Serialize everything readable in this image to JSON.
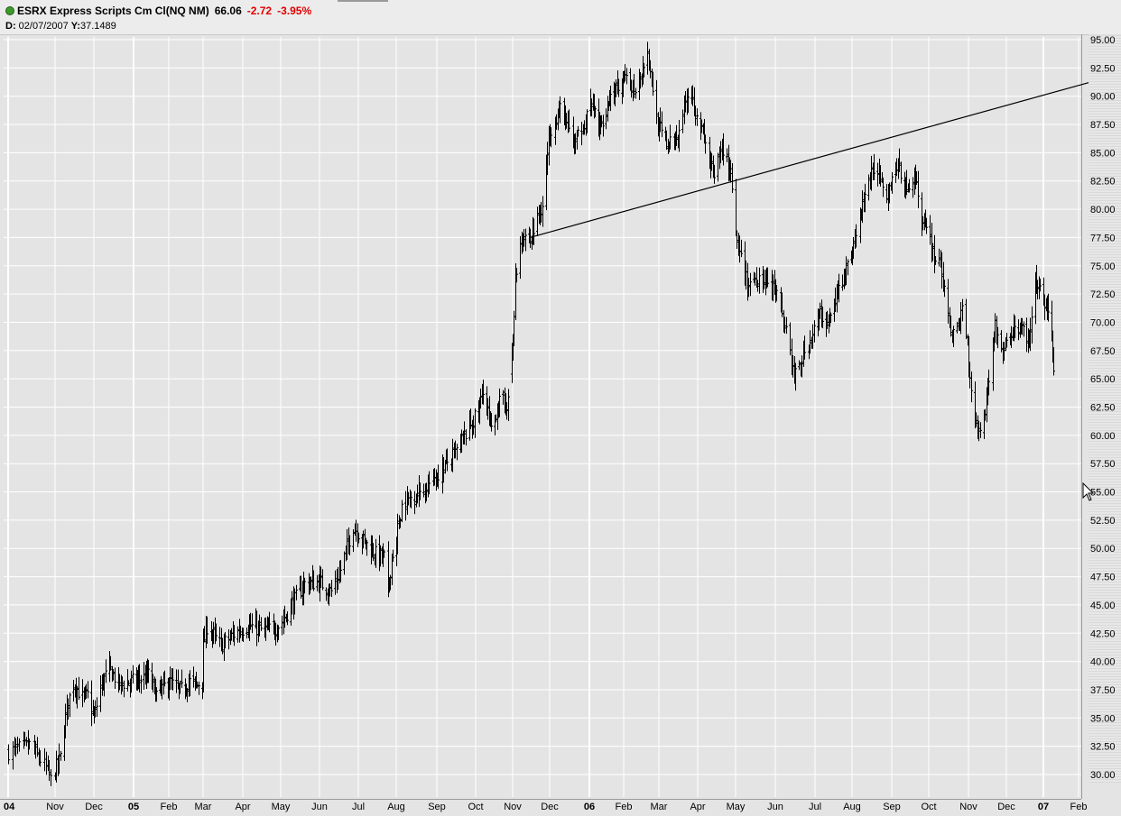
{
  "header": {
    "title": "ESRX Express Scripts Cm Cl(NQ NM)",
    "last": "66.06",
    "change": "-2.72",
    "change_pct": "-3.95%",
    "cursor_date_label": "D:",
    "cursor_date": "02/07/2007",
    "cursor_y_label": "Y:",
    "cursor_y": "37.1489"
  },
  "colors": {
    "background": "#e4e4e4",
    "grid": "#ffffff",
    "bars": "#000000",
    "change": "#e00000"
  },
  "chart_data": {
    "type": "ohlc",
    "title": "",
    "ylim": [
      29,
      95.5
    ],
    "y_ticks": [
      "30.00",
      "32.50",
      "35.00",
      "37.50",
      "40.00",
      "42.50",
      "45.00",
      "47.50",
      "50.00",
      "52.50",
      "55.00",
      "57.50",
      "60.00",
      "62.50",
      "65.00",
      "67.50",
      "70.00",
      "72.50",
      "75.00",
      "77.50",
      "80.00",
      "82.50",
      "85.00",
      "87.50",
      "90.00",
      "92.50",
      "95.00"
    ],
    "x_ticks": [
      "04",
      "Nov",
      "Dec",
      "05",
      "Feb",
      "Mar",
      "Apr",
      "May",
      "Jun",
      "Jul",
      "Aug",
      "Sep",
      "Oct",
      "Nov",
      "Dec",
      "06",
      "Feb",
      "Mar",
      "Apr",
      "May",
      "Jun",
      "Jul",
      "Aug",
      "Sep",
      "Oct",
      "Nov",
      "Dec",
      "07",
      "Feb"
    ],
    "year_ticks": [
      "04",
      "05",
      "06",
      "07"
    ],
    "x_range": [
      "2004-10-01",
      "2007-02-28"
    ],
    "grid": true,
    "trendline": {
      "from": {
        "date": "2005-11-15",
        "value": 77.5
      },
      "to": {
        "date": "2007-02-28",
        "value": 91.2
      }
    },
    "anchors": [
      [
        "2004-10-01",
        32.0
      ],
      [
        "2004-10-15",
        32.6
      ],
      [
        "2004-10-26",
        30.6
      ],
      [
        "2004-10-29",
        29.5
      ],
      [
        "2004-11-05",
        31.5
      ],
      [
        "2004-11-10",
        36.0
      ],
      [
        "2004-11-15",
        38.1
      ],
      [
        "2004-11-22",
        36.8
      ],
      [
        "2004-11-26",
        37.0
      ],
      [
        "2004-12-01",
        35.0
      ],
      [
        "2004-12-06",
        37.8
      ],
      [
        "2004-12-13",
        39.4
      ],
      [
        "2004-12-20",
        38.0
      ],
      [
        "2005-01-03",
        38.3
      ],
      [
        "2005-01-14",
        38.8
      ],
      [
        "2005-01-21",
        37.1
      ],
      [
        "2005-02-01",
        38.2
      ],
      [
        "2005-02-10",
        37.4
      ],
      [
        "2005-02-18",
        38.2
      ],
      [
        "2005-02-24",
        37.9
      ],
      [
        "2005-02-28",
        38.5
      ],
      [
        "2005-03-01",
        41.5
      ],
      [
        "2005-03-04",
        43.1
      ],
      [
        "2005-03-15",
        41.4
      ],
      [
        "2005-03-25",
        42.4
      ],
      [
        "2005-04-05",
        43.2
      ],
      [
        "2005-04-15",
        42.8
      ],
      [
        "2005-04-25",
        42.8
      ],
      [
        "2005-05-02",
        43.5
      ],
      [
        "2005-05-10",
        45.1
      ],
      [
        "2005-05-20",
        46.9
      ],
      [
        "2005-06-01",
        47.0
      ],
      [
        "2005-06-10",
        46.2
      ],
      [
        "2005-06-17",
        48.1
      ],
      [
        "2005-06-27",
        52.0
      ],
      [
        "2005-07-05",
        50.7
      ],
      [
        "2005-07-15",
        49.5
      ],
      [
        "2005-07-22",
        49.2
      ],
      [
        "2005-07-25",
        46.0
      ],
      [
        "2005-07-28",
        49.2
      ],
      [
        "2005-08-01",
        51.0
      ],
      [
        "2005-08-05",
        53.8
      ],
      [
        "2005-08-15",
        54.8
      ],
      [
        "2005-08-25",
        55.6
      ],
      [
        "2005-09-05",
        57.1
      ],
      [
        "2005-09-15",
        58.4
      ],
      [
        "2005-09-25",
        60.6
      ],
      [
        "2005-10-03",
        62.0
      ],
      [
        "2005-10-07",
        64.3
      ],
      [
        "2005-10-14",
        60.2
      ],
      [
        "2005-10-20",
        62.9
      ],
      [
        "2005-10-28",
        62.9
      ],
      [
        "2005-11-01",
        68.5
      ],
      [
        "2005-11-03",
        73.8
      ],
      [
        "2005-11-08",
        77.9
      ],
      [
        "2005-11-15",
        77.2
      ],
      [
        "2005-11-25",
        80.5
      ],
      [
        "2005-12-01",
        87.0
      ],
      [
        "2005-12-10",
        89.0
      ],
      [
        "2005-12-20",
        85.5
      ],
      [
        "2006-01-03",
        89.5
      ],
      [
        "2006-01-10",
        87.2
      ],
      [
        "2006-01-20",
        90.0
      ],
      [
        "2006-02-01",
        91.3
      ],
      [
        "2006-02-10",
        90.8
      ],
      [
        "2006-02-20",
        93.9
      ],
      [
        "2006-02-28",
        87.5
      ],
      [
        "2006-03-08",
        85.5
      ],
      [
        "2006-03-15",
        86.4
      ],
      [
        "2006-03-25",
        90.8
      ],
      [
        "2006-04-01",
        88.2
      ],
      [
        "2006-04-10",
        84.5
      ],
      [
        "2006-04-14",
        82.5
      ],
      [
        "2006-04-20",
        85.6
      ],
      [
        "2006-04-27",
        83.3
      ],
      [
        "2006-05-01",
        77.5
      ],
      [
        "2006-05-05",
        75.5
      ],
      [
        "2006-05-10",
        73.4
      ],
      [
        "2006-05-20",
        74.2
      ],
      [
        "2006-06-01",
        72.8
      ],
      [
        "2006-06-10",
        69.0
      ],
      [
        "2006-06-15",
        65.0
      ],
      [
        "2006-06-25",
        67.8
      ],
      [
        "2006-07-05",
        70.8
      ],
      [
        "2006-07-12",
        69.8
      ],
      [
        "2006-07-20",
        72.6
      ],
      [
        "2006-07-28",
        75.0
      ],
      [
        "2006-08-05",
        78.0
      ],
      [
        "2006-08-12",
        82.0
      ],
      [
        "2006-08-20",
        84.0
      ],
      [
        "2006-08-28",
        81.5
      ],
      [
        "2006-09-05",
        84.0
      ],
      [
        "2006-09-12",
        82.0
      ],
      [
        "2006-09-20",
        83.0
      ],
      [
        "2006-09-25",
        79.0
      ],
      [
        "2006-10-01",
        77.5
      ],
      [
        "2006-10-06",
        75.5
      ],
      [
        "2006-10-10",
        75.5
      ],
      [
        "2006-10-15",
        70.5
      ],
      [
        "2006-10-22",
        68.5
      ],
      [
        "2006-10-28",
        72.0
      ],
      [
        "2006-11-01",
        66.5
      ],
      [
        "2006-11-04",
        63.0
      ],
      [
        "2006-11-08",
        60.5
      ],
      [
        "2006-11-13",
        61.5
      ],
      [
        "2006-11-18",
        66.0
      ],
      [
        "2006-11-22",
        69.5
      ],
      [
        "2006-11-27",
        67.5
      ],
      [
        "2006-12-02",
        68.0
      ],
      [
        "2006-12-08",
        69.5
      ],
      [
        "2006-12-15",
        69.5
      ],
      [
        "2006-12-20",
        68.0
      ],
      [
        "2006-12-25",
        73.5
      ],
      [
        "2007-01-03",
        71.5
      ],
      [
        "2007-01-08",
        68.5
      ],
      [
        "2007-01-10",
        66.1
      ]
    ],
    "gaps_after": [
      "2005-02-28",
      "2005-07-28",
      "2005-10-28",
      "2006-04-27",
      "2007-01-10"
    ]
  }
}
